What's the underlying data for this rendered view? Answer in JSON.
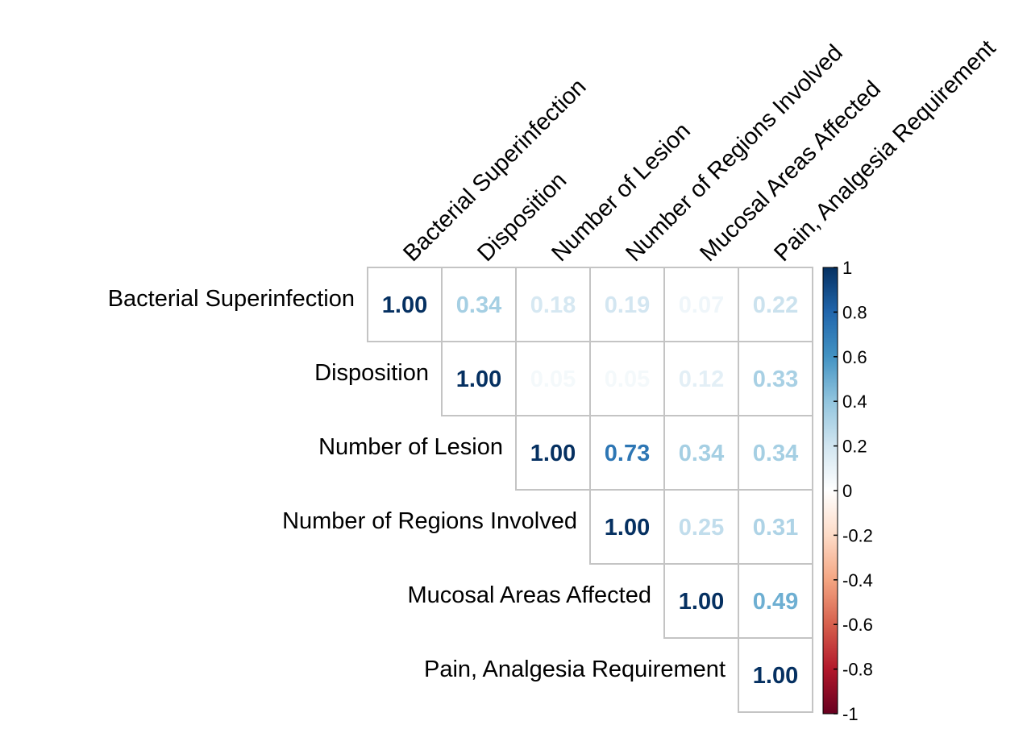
{
  "chart_data": {
    "type": "heatmap",
    "layout": "upper-triangle correlation matrix",
    "variables": [
      "Bacterial Superinfection",
      "Disposition",
      "Number of Lesion",
      "Number of Regions Involved",
      "Mucosal Areas Affected",
      "Pain, Analgesia Requirement"
    ],
    "matrix": [
      [
        1.0,
        0.34,
        0.18,
        0.19,
        0.07,
        0.22
      ],
      [
        null,
        1.0,
        0.05,
        0.05,
        0.12,
        0.33
      ],
      [
        null,
        null,
        1.0,
        0.73,
        0.34,
        0.34
      ],
      [
        null,
        null,
        null,
        1.0,
        0.25,
        0.31
      ],
      [
        null,
        null,
        null,
        null,
        1.0,
        0.49
      ],
      [
        null,
        null,
        null,
        null,
        null,
        1.0
      ]
    ],
    "color_scale": {
      "range": [
        -1,
        1
      ],
      "ticks": [
        "1",
        "0.8",
        "0.6",
        "0.4",
        "0.2",
        "0",
        "-0.2",
        "-0.4",
        "-0.6",
        "-0.8",
        "-1"
      ],
      "colors": [
        "#67001F",
        "#B2182B",
        "#D6604D",
        "#F4A582",
        "#FDDBC7",
        "#FFFFFF",
        "#D1E5F0",
        "#92C5DE",
        "#4393C3",
        "#2166AC",
        "#053061"
      ]
    },
    "grid_color": "#c4c4c4",
    "legend_position": "right"
  }
}
